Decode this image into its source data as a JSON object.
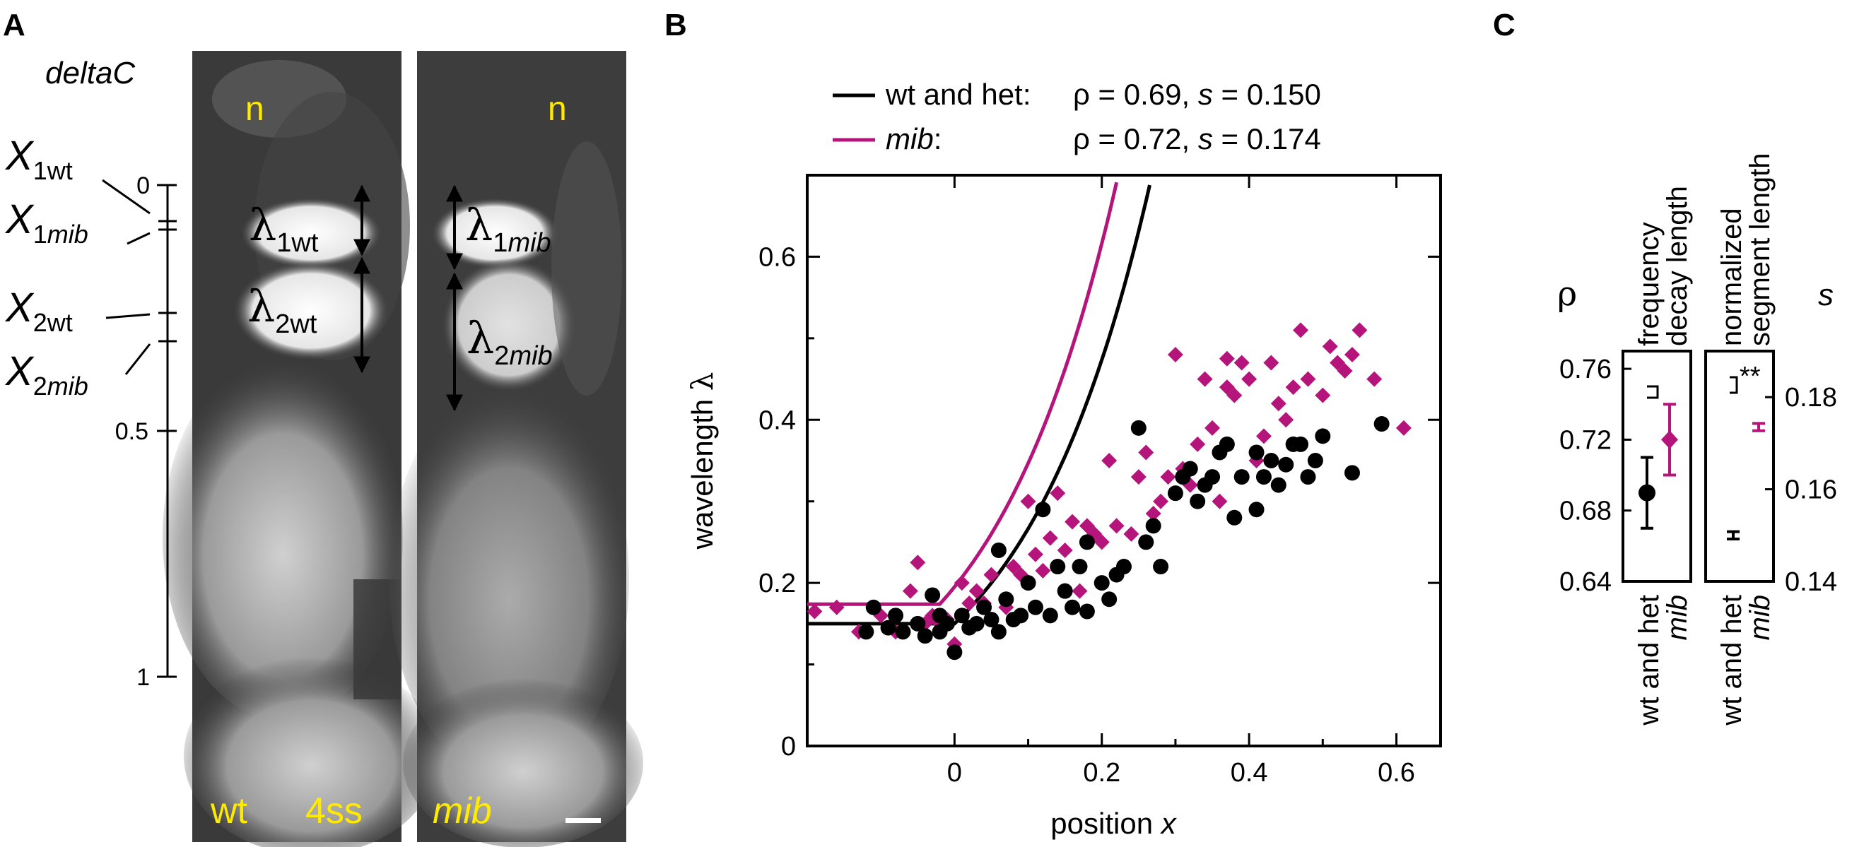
{
  "panels": {
    "a": "A",
    "b": "B",
    "c": "C"
  },
  "panel_a": {
    "gene": "deltaC",
    "notochord_left": "n",
    "notochord_right": "n",
    "wt_label": "wt",
    "stage_label": "4ss",
    "mib_label": "mib",
    "axis_ticks": [
      "0",
      "0.5",
      "1"
    ],
    "x_labels": [
      {
        "main": "X",
        "sub": "1wt"
      },
      {
        "main": "X",
        "sub_a": "1",
        "sub_b": "mib"
      },
      {
        "main": "X",
        "sub": "2wt"
      },
      {
        "main": "X",
        "sub_a": "2",
        "sub_b": "mib"
      }
    ],
    "lambda_labels": [
      {
        "main": "λ",
        "sub": "1wt"
      },
      {
        "main": "λ",
        "sub": "2wt"
      },
      {
        "main": "λ",
        "sub_a": "1",
        "sub_b": "mib"
      },
      {
        "main": "λ",
        "sub_a": "2",
        "sub_b": "mib"
      }
    ]
  },
  "chart_data": [
    {
      "type": "scatter",
      "xlabel": "position x",
      "ylabel": "wavelength λ",
      "xlim": [
        -0.2,
        0.66
      ],
      "ylim": [
        0,
        0.7
      ],
      "xticks": [
        "0",
        "0.2",
        "0.4",
        "0.6"
      ],
      "yticks": [
        "0",
        "0.2",
        "0.4",
        "0.6"
      ],
      "legend": [
        {
          "name_a": "wt and het",
          "name_b": ":",
          "rho": "ρ = 0.69,",
          "s": "s",
          "sval": "= 0.150",
          "color": "#000000"
        },
        {
          "name_a": "mib",
          "name_b": ":",
          "rho": "ρ = 0.72,",
          "s": "s",
          "sval": "= 0.174",
          "color": "#b5147a"
        }
      ],
      "series": [
        {
          "name": "wt and het",
          "color": "#000000",
          "marker": "circle",
          "fit": {
            "lambda0": 0.15,
            "x0": 0.0,
            "tau": 0.174
          },
          "points": [
            [
              -0.12,
              0.14
            ],
            [
              -0.11,
              0.17
            ],
            [
              -0.09,
              0.145
            ],
            [
              -0.08,
              0.16
            ],
            [
              -0.07,
              0.14
            ],
            [
              -0.05,
              0.15
            ],
            [
              -0.04,
              0.135
            ],
            [
              -0.03,
              0.185
            ],
            [
              -0.02,
              0.14
            ],
            [
              -0.02,
              0.16
            ],
            [
              -0.01,
              0.15
            ],
            [
              0.0,
              0.115
            ],
            [
              0.01,
              0.16
            ],
            [
              0.02,
              0.145
            ],
            [
              0.03,
              0.15
            ],
            [
              0.04,
              0.17
            ],
            [
              0.05,
              0.155
            ],
            [
              0.06,
              0.14
            ],
            [
              0.06,
              0.24
            ],
            [
              0.07,
              0.18
            ],
            [
              0.08,
              0.155
            ],
            [
              0.09,
              0.16
            ],
            [
              0.1,
              0.2
            ],
            [
              0.11,
              0.17
            ],
            [
              0.12,
              0.29
            ],
            [
              0.13,
              0.16
            ],
            [
              0.14,
              0.22
            ],
            [
              0.15,
              0.19
            ],
            [
              0.16,
              0.17
            ],
            [
              0.17,
              0.22
            ],
            [
              0.18,
              0.25
            ],
            [
              0.18,
              0.165
            ],
            [
              0.2,
              0.2
            ],
            [
              0.21,
              0.18
            ],
            [
              0.22,
              0.21
            ],
            [
              0.23,
              0.22
            ],
            [
              0.25,
              0.39
            ],
            [
              0.26,
              0.25
            ],
            [
              0.27,
              0.27
            ],
            [
              0.28,
              0.22
            ],
            [
              0.3,
              0.31
            ],
            [
              0.31,
              0.33
            ],
            [
              0.32,
              0.34
            ],
            [
              0.33,
              0.3
            ],
            [
              0.34,
              0.32
            ],
            [
              0.35,
              0.33
            ],
            [
              0.36,
              0.36
            ],
            [
              0.37,
              0.37
            ],
            [
              0.38,
              0.28
            ],
            [
              0.39,
              0.33
            ],
            [
              0.41,
              0.29
            ],
            [
              0.41,
              0.36
            ],
            [
              0.42,
              0.33
            ],
            [
              0.43,
              0.35
            ],
            [
              0.44,
              0.32
            ],
            [
              0.45,
              0.345
            ],
            [
              0.46,
              0.37
            ],
            [
              0.47,
              0.37
            ],
            [
              0.48,
              0.33
            ],
            [
              0.49,
              0.35
            ],
            [
              0.5,
              0.38
            ],
            [
              0.54,
              0.335
            ],
            [
              0.58,
              0.395
            ]
          ]
        },
        {
          "name": "mib",
          "color": "#b5147a",
          "marker": "diamond",
          "fit": {
            "lambda0": 0.174,
            "x0": -0.02,
            "tau": 0.174
          },
          "points": [
            [
              -0.19,
              0.165
            ],
            [
              -0.16,
              0.17
            ],
            [
              -0.13,
              0.14
            ],
            [
              -0.1,
              0.16
            ],
            [
              -0.08,
              0.14
            ],
            [
              -0.06,
              0.19
            ],
            [
              -0.05,
              0.225
            ],
            [
              -0.04,
              0.15
            ],
            [
              -0.03,
              0.16
            ],
            [
              -0.02,
              0.15
            ],
            [
              -0.01,
              0.155
            ],
            [
              0.0,
              0.125
            ],
            [
              0.01,
              0.2
            ],
            [
              0.02,
              0.175
            ],
            [
              0.03,
              0.19
            ],
            [
              0.04,
              0.175
            ],
            [
              0.05,
              0.21
            ],
            [
              0.06,
              0.24
            ],
            [
              0.07,
              0.17
            ],
            [
              0.08,
              0.22
            ],
            [
              0.09,
              0.21
            ],
            [
              0.1,
              0.3
            ],
            [
              0.11,
              0.235
            ],
            [
              0.12,
              0.215
            ],
            [
              0.13,
              0.255
            ],
            [
              0.14,
              0.31
            ],
            [
              0.15,
              0.24
            ],
            [
              0.16,
              0.275
            ],
            [
              0.17,
              0.19
            ],
            [
              0.18,
              0.27
            ],
            [
              0.19,
              0.26
            ],
            [
              0.2,
              0.25
            ],
            [
              0.21,
              0.35
            ],
            [
              0.22,
              0.27
            ],
            [
              0.24,
              0.26
            ],
            [
              0.25,
              0.33
            ],
            [
              0.26,
              0.36
            ],
            [
              0.27,
              0.285
            ],
            [
              0.28,
              0.3
            ],
            [
              0.29,
              0.33
            ],
            [
              0.3,
              0.48
            ],
            [
              0.31,
              0.34
            ],
            [
              0.32,
              0.32
            ],
            [
              0.33,
              0.37
            ],
            [
              0.34,
              0.45
            ],
            [
              0.35,
              0.39
            ],
            [
              0.36,
              0.3
            ],
            [
              0.37,
              0.475
            ],
            [
              0.37,
              0.44
            ],
            [
              0.38,
              0.43
            ],
            [
              0.39,
              0.47
            ],
            [
              0.4,
              0.45
            ],
            [
              0.41,
              0.35
            ],
            [
              0.42,
              0.38
            ],
            [
              0.43,
              0.47
            ],
            [
              0.44,
              0.42
            ],
            [
              0.45,
              0.4
            ],
            [
              0.46,
              0.44
            ],
            [
              0.47,
              0.51
            ],
            [
              0.48,
              0.45
            ],
            [
              0.49,
              0.35
            ],
            [
              0.5,
              0.43
            ],
            [
              0.51,
              0.49
            ],
            [
              0.52,
              0.47
            ],
            [
              0.53,
              0.46
            ],
            [
              0.54,
              0.48
            ],
            [
              0.55,
              0.51
            ],
            [
              0.57,
              0.45
            ],
            [
              0.61,
              0.39
            ]
          ]
        }
      ]
    },
    {
      "type": "errorbar",
      "ylabel": "ρ",
      "title_a": "frequency",
      "title_b": "decay length",
      "ylim": [
        0.64,
        0.77
      ],
      "yticks": [
        "0.76",
        "0.72",
        "0.68",
        "0.64"
      ],
      "categories": [
        "wt and het",
        "mib"
      ],
      "values": [
        0.69,
        0.72
      ],
      "errors": [
        0.02,
        0.02
      ],
      "colors": [
        "#000000",
        "#b5147a"
      ],
      "significance": ""
    },
    {
      "type": "errorbar",
      "ylabel": "s",
      "title_a": "normalized",
      "title_b": "segment length",
      "ylim": [
        0.14,
        0.19
      ],
      "yticks": [
        "0.18",
        "0.16",
        "0.14"
      ],
      "categories": [
        "wt and het",
        "mib"
      ],
      "values": [
        0.15,
        0.1735
      ],
      "errors": [
        0.0008,
        0.0008
      ],
      "colors": [
        "#000000",
        "#b5147a"
      ],
      "significance": "**"
    }
  ]
}
